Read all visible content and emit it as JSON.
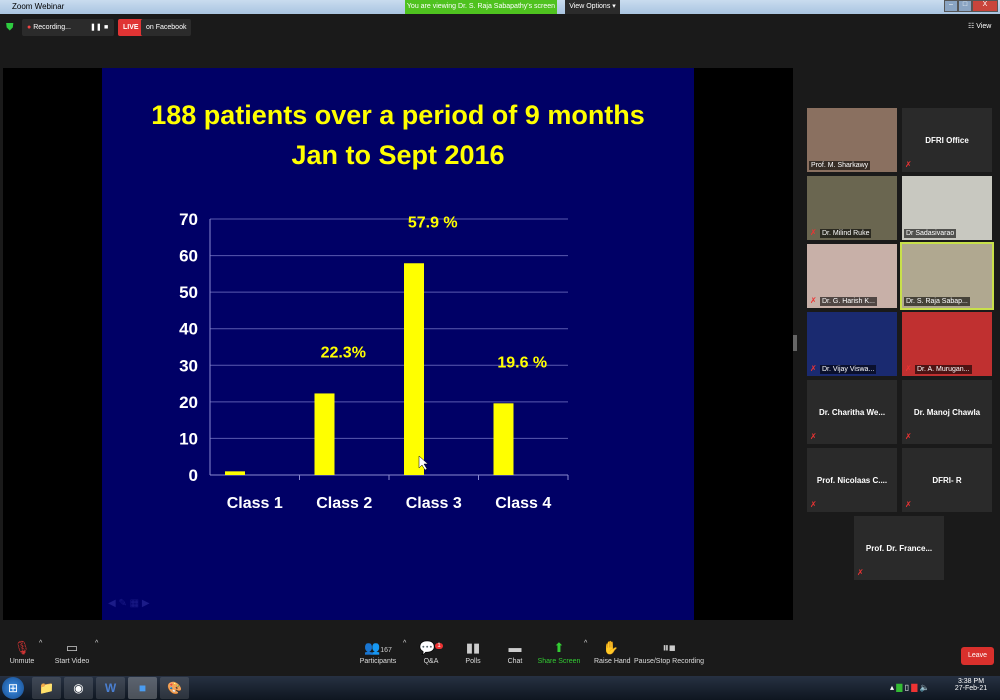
{
  "window": {
    "title": "Zoom Webinar",
    "viewing_banner": "You are viewing Dr. S. Raja Sabapathy's screen",
    "view_options": "View Options"
  },
  "topbar": {
    "recording": "Recording...",
    "live": "LIVE",
    "live_target": "on Facebook",
    "view": "View"
  },
  "slide": {
    "title_line1": "188 patients over a period of 9 months",
    "title_line2": "Jan to Sept 2016"
  },
  "chart_data": {
    "type": "bar",
    "categories": [
      "Class 1",
      "Class 2",
      "Class 3",
      "Class 4"
    ],
    "values": [
      1,
      22.3,
      57.9,
      19.6
    ],
    "data_labels": [
      "",
      "22.3%",
      "57.9 %",
      "19.6 %"
    ],
    "yticks": [
      "0",
      "10",
      "20",
      "30",
      "40",
      "50",
      "60",
      "70"
    ],
    "ylim": [
      0,
      70
    ],
    "grid": true,
    "bar_color": "#ffff00",
    "background": "#000066"
  },
  "participants": [
    {
      "name": "Prof. M. Sharkawy",
      "video": true,
      "muted": false
    },
    {
      "name": "DFRI Office",
      "video": false,
      "muted": true
    },
    {
      "name": "Dr. Milind Ruke",
      "video": true,
      "muted": true
    },
    {
      "name": "Dr Sadasivarao",
      "video": true,
      "muted": false
    },
    {
      "name": "Dr. G. Harish K...",
      "video": true,
      "muted": true
    },
    {
      "name": "Dr. S. Raja Sabap...",
      "video": true,
      "muted": false,
      "active": true
    },
    {
      "name": "Dr. Vijay Viswa...",
      "video": true,
      "muted": true
    },
    {
      "name": "Dr. A. Murugan...",
      "video": true,
      "muted": true
    },
    {
      "name": "Dr. Charitha We...",
      "video": false,
      "muted": true
    },
    {
      "name": "Dr. Manoj Chawla",
      "video": false,
      "muted": true
    },
    {
      "name": "Prof. Nicolaas C....",
      "video": false,
      "muted": true
    },
    {
      "name": "DFRI- R",
      "video": false,
      "muted": true
    },
    {
      "name": "Prof. Dr. France...",
      "video": false,
      "muted": true
    }
  ],
  "toolbar": {
    "unmute": "Unmute",
    "start_video": "Start Video",
    "participants": "Participants",
    "participant_count": "167",
    "qa": "Q&A",
    "qa_badge": "1",
    "polls": "Polls",
    "chat": "Chat",
    "share_screen": "Share Screen",
    "raise_hand": "Raise Hand",
    "recording": "Pause/Stop Recording",
    "leave": "Leave"
  },
  "taskbar": {
    "time": "3:38 PM",
    "date": "27-Feb-21"
  }
}
